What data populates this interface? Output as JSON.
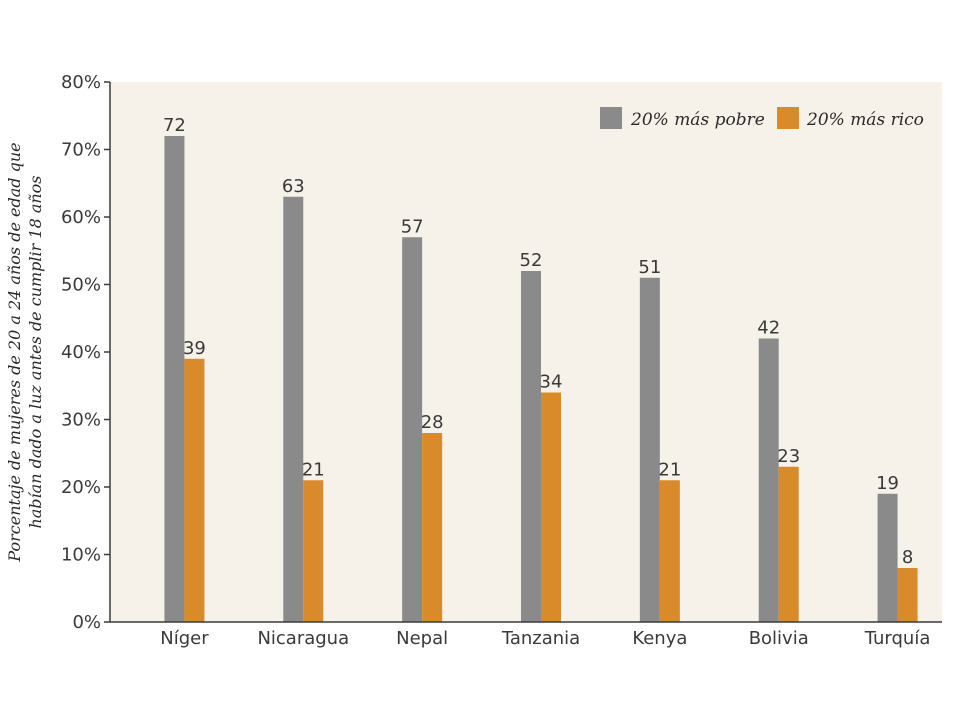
{
  "chart_data": {
    "type": "bar",
    "categories": [
      "Níger",
      "Nicaragua",
      "Nepal",
      "Tanzania",
      "Kenya",
      "Bolivia",
      "Turquía"
    ],
    "series": [
      {
        "name": "20% más pobre",
        "values": [
          72,
          63,
          57,
          52,
          51,
          42,
          19
        ],
        "color": "#8a8a8a"
      },
      {
        "name": "20% más rico",
        "values": [
          39,
          21,
          28,
          34,
          21,
          23,
          8
        ],
        "color": "#d98b2b"
      }
    ],
    "ylabel_lines": [
      "Porcentaje de mujeres de 20 a 24 años de edad que",
      "habían dado a luz antes de cumplir 18 años"
    ],
    "yticks": [
      "0%",
      "10%",
      "20%",
      "30%",
      "40%",
      "50%",
      "60%",
      "70%",
      "80%"
    ],
    "ylim": [
      0,
      80
    ],
    "legend_position": "top-right",
    "plot_background": "#f7f2e9",
    "grid": false
  }
}
